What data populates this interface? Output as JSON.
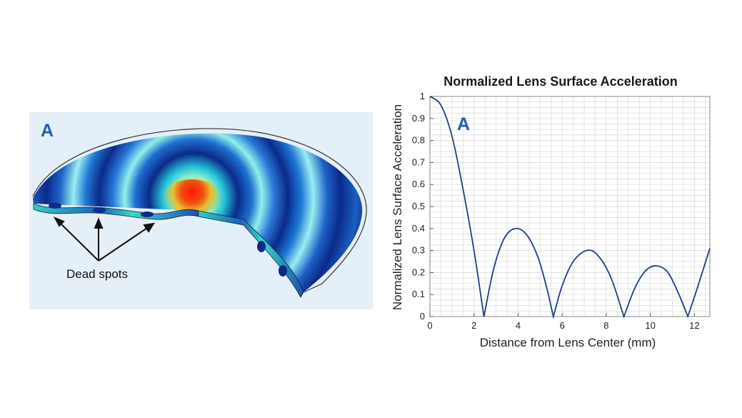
{
  "left_panel": {
    "letter": "A",
    "annotation": "Dead spots",
    "colors": {
      "background": "#e4eff8",
      "low": "#0b2a8a",
      "mid": "#25c4d8",
      "high": "#e02010"
    }
  },
  "chart_data": {
    "type": "line",
    "title": "Normalized Lens Surface Acceleration",
    "panel_letter": "A",
    "xlabel": "Distance from Lens Center (mm)",
    "ylabel": "Normalized Lens Surface Acceleration",
    "xlim": [
      0,
      12.7
    ],
    "ylim": [
      0,
      1
    ],
    "xticks": [
      "0",
      "2",
      "4",
      "6",
      "8",
      "10",
      "12"
    ],
    "yticks": [
      "0",
      "0.1",
      "0.2",
      "0.3",
      "0.4",
      "0.5",
      "0.6",
      "0.7",
      "0.8",
      "0.9",
      "1"
    ],
    "grid": true,
    "line_color": "#1a3f8c",
    "series": [
      {
        "x": [
          0,
          0.5,
          1.0,
          1.5,
          2.0,
          2.45,
          2.9,
          3.4,
          3.9,
          4.4,
          4.9,
          5.3,
          5.6,
          6.0,
          6.5,
          7.1,
          7.6,
          8.2,
          8.8,
          9.3,
          9.8,
          10.3,
          10.8,
          11.3,
          11.7,
          12.1,
          12.7
        ],
        "y": [
          1.0,
          0.96,
          0.82,
          0.58,
          0.3,
          0.0,
          0.22,
          0.36,
          0.4,
          0.37,
          0.27,
          0.13,
          0.0,
          0.14,
          0.25,
          0.3,
          0.28,
          0.18,
          0.0,
          0.13,
          0.21,
          0.23,
          0.2,
          0.1,
          0.0,
          0.12,
          0.31
        ]
      }
    ]
  }
}
